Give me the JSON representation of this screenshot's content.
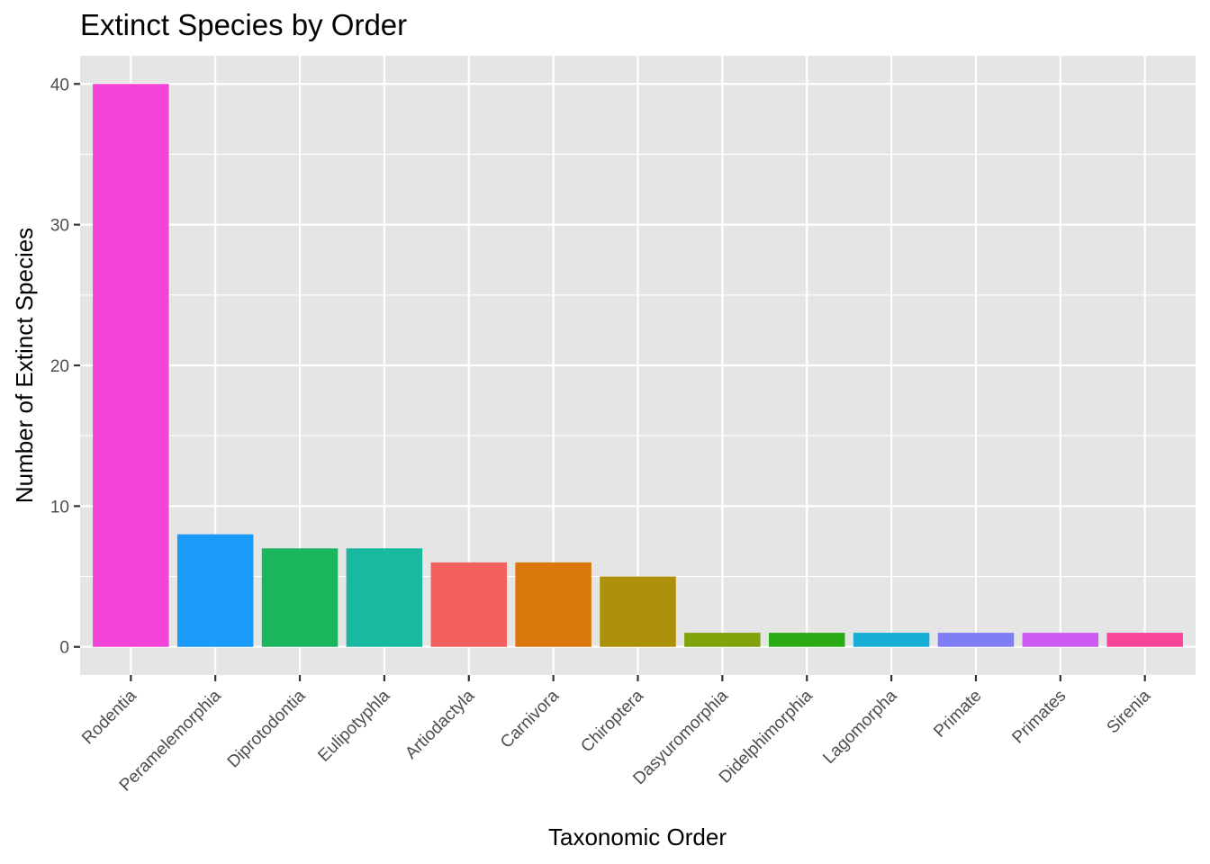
{
  "chart_data": {
    "type": "bar",
    "title": "Extinct Species by Order",
    "xlabel": "Taxonomic Order",
    "ylabel": "Number of Extinct Species",
    "ylim": [
      -2,
      42
    ],
    "yticks": [
      0,
      10,
      20,
      30,
      40
    ],
    "grid": true,
    "legend": "none",
    "categories": [
      "Rodentia",
      "Peramelemorphia",
      "Diprotodontia",
      "Eulipotyphla",
      "Artiodactyla",
      "Carnivora",
      "Chiroptera",
      "Dasyuromorphia",
      "Didelphimorphia",
      "Lagomorpha",
      "Primate",
      "Primates",
      "Sirenia"
    ],
    "values": [
      40,
      8,
      7,
      7,
      6,
      6,
      5,
      1,
      1,
      1,
      1,
      1,
      1
    ],
    "colors": [
      "#F244D6",
      "#1A9BFA",
      "#1BB55D",
      "#19B8A0",
      "#F2615D",
      "#D9770B",
      "#AD900A",
      "#80A20B",
      "#2AAA14",
      "#17ADD4",
      "#7F7EF7",
      "#CD5BF2",
      "#F74599"
    ],
    "panel_background": "#E5E5E5",
    "grid_color": "#FFFFFF"
  }
}
